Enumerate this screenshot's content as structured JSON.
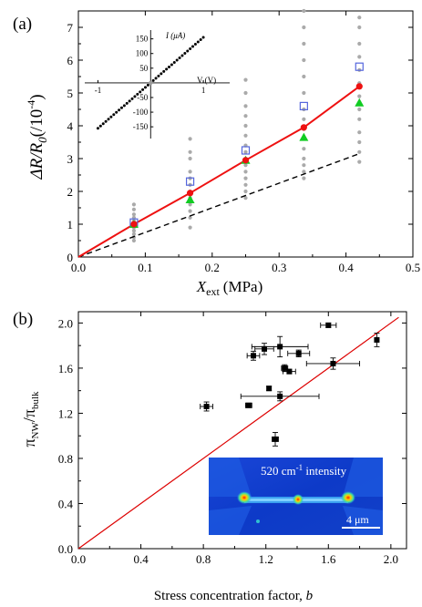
{
  "chart_data": [
    {
      "type": "scatter",
      "panel_label": "(a)",
      "xlabel_main": "X",
      "xlabel_sub": "ext",
      "xlabel_unit": "(MPa)",
      "ylabel_main": "ΔR/R",
      "ylabel_sub": "0",
      "ylabel_unit": "(/10",
      "ylabel_exp": "-4",
      "ylabel_close": ")",
      "xlim": [
        0,
        0.5
      ],
      "ylim": [
        0,
        7.5
      ],
      "xticks": [
        "0.0",
        "0.1",
        "0.2",
        "0.3",
        "0.4",
        "0.5"
      ],
      "yticks": [
        "0",
        "1",
        "2",
        "3",
        "4",
        "5",
        "6",
        "7"
      ],
      "x": [
        0.083,
        0.167,
        0.25,
        0.337,
        0.42
      ],
      "scatter_gray": [
        {
          "x": 0.083,
          "y": [
            0.5,
            0.6,
            0.7,
            0.8,
            0.9,
            1.0,
            1.1,
            1.2,
            1.3,
            1.45,
            1.6
          ]
        },
        {
          "x": 0.167,
          "y": [
            0.9,
            1.2,
            1.4,
            1.6,
            1.8,
            2.0,
            2.2,
            2.4,
            2.6,
            3.0,
            3.2,
            3.6
          ]
        },
        {
          "x": 0.25,
          "y": [
            1.8,
            2.0,
            2.2,
            2.4,
            2.6,
            2.8,
            3.0,
            3.2,
            3.4,
            3.7,
            4.0,
            4.3,
            4.6,
            5.0,
            5.4
          ]
        },
        {
          "x": 0.337,
          "y": [
            2.4,
            2.6,
            2.8,
            3.0,
            3.3,
            3.6,
            3.9,
            4.2,
            4.5,
            5.0,
            5.5,
            6.0,
            6.5,
            7.0,
            7.5
          ]
        },
        {
          "x": 0.42,
          "y": [
            2.9,
            3.2,
            3.5,
            3.8,
            4.2,
            4.5,
            4.9,
            5.3,
            5.7,
            6.1,
            6.5,
            7.0,
            7.3
          ]
        }
      ],
      "series": [
        {
          "kind": "line-markers",
          "color": "#ee1111",
          "values": [
            0.0,
            1.0,
            1.95,
            2.95,
            3.95,
            5.2
          ],
          "x": [
            0.0,
            0.083,
            0.167,
            0.25,
            0.337,
            0.42
          ]
        },
        {
          "kind": "triangles",
          "color": "#11cc22",
          "values": [
            1.0,
            1.75,
            2.95,
            3.65,
            4.7
          ]
        },
        {
          "kind": "open-squares",
          "color": "#5566dd",
          "values": [
            1.05,
            2.3,
            3.25,
            4.6,
            5.8
          ]
        },
        {
          "kind": "dashed-line",
          "color": "#000000",
          "x": [
            0.0,
            0.42
          ],
          "values": [
            0.0,
            3.15
          ]
        }
      ],
      "inset": {
        "xlabel": "V (V)",
        "ylabel": "I (μA)",
        "xlim": [
          -1.25,
          1.5
        ],
        "ylim": [
          -190,
          180
        ],
        "xticks": [
          "-1",
          "1"
        ],
        "yticks": [
          "150",
          "100",
          "50",
          "-50",
          "-100",
          "-150"
        ],
        "line": {
          "x": [
            -1.0,
            1.0
          ],
          "y": [
            -155,
            155
          ]
        }
      }
    },
    {
      "type": "scatter",
      "panel_label": "(b)",
      "xlabel": "Stress concentration factor, ",
      "xlabel_var": "b",
      "ylabel_main": "π",
      "ylabel_sub": "NW",
      "ylabel_div": "/π",
      "ylabel_sub2": "bulk",
      "xlim": [
        0,
        2.1
      ],
      "ylim": [
        0,
        2.1
      ],
      "xticks": [
        "0.0",
        "0.4",
        "0.8",
        "1.2",
        "1.6",
        "2.0"
      ],
      "yticks": [
        "0.0",
        "0.4",
        "0.8",
        "1.2",
        "1.6",
        "2.0"
      ],
      "points": [
        {
          "x": 0.82,
          "y": 1.26,
          "xerr": 0.04,
          "yerr": 0.04
        },
        {
          "x": 1.09,
          "y": 1.27,
          "xerr": 0.02,
          "yerr": 0.02
        },
        {
          "x": 1.12,
          "y": 1.71,
          "xerr": 0.04,
          "yerr": 0.04
        },
        {
          "x": 1.19,
          "y": 1.77,
          "xerr": 0.06,
          "yerr": 0.05
        },
        {
          "x": 1.22,
          "y": 1.42,
          "xerr": 0.0,
          "yerr": 0.02
        },
        {
          "x": 1.26,
          "y": 0.97,
          "xerr": 0.02,
          "yerr": 0.06
        },
        {
          "x": 1.29,
          "y": 1.79,
          "xerr": 0.18,
          "yerr": 0.09
        },
        {
          "x": 1.29,
          "y": 1.35,
          "xerr": 0.25,
          "yerr": 0.04
        },
        {
          "x": 1.32,
          "y": 1.6,
          "xerr": 0.02,
          "yerr": 0.03
        },
        {
          "x": 1.35,
          "y": 1.57,
          "xerr": 0.04,
          "yerr": 0.02
        },
        {
          "x": 1.41,
          "y": 1.73,
          "xerr": 0.07,
          "yerr": 0.03
        },
        {
          "x": 1.6,
          "y": 1.98,
          "xerr": 0.05,
          "yerr": 0.02
        },
        {
          "x": 1.63,
          "y": 1.64,
          "xerr": 0.17,
          "yerr": 0.05
        },
        {
          "x": 1.91,
          "y": 1.85,
          "xerr": 0.0,
          "yerr": 0.06
        }
      ],
      "reference_line": {
        "color": "#dd0000",
        "x": [
          0.0,
          2.05
        ],
        "y": [
          0.0,
          2.05
        ]
      },
      "inset": {
        "caption": "520 cm",
        "caption_sup": "-1",
        "caption_tail": " intensity",
        "scale_bar_label": "4 μm"
      }
    }
  ]
}
